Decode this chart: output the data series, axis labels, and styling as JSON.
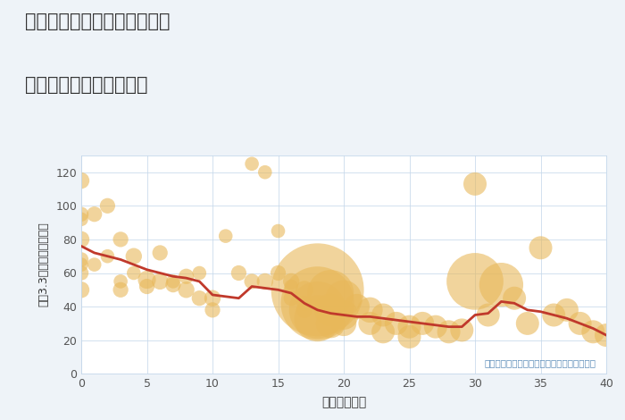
{
  "title_line1": "兵庫県姫路市御国野町御着の",
  "title_line2": "築年数別中古戸建て価格",
  "xlabel": "築年数（年）",
  "ylabel": "坪（3.3㎡）単価（万円）",
  "annotation": "円の大きさは、取引のあった物件面積を示す",
  "background_color": "#eef3f8",
  "plot_background": "#ffffff",
  "xlim": [
    0,
    40
  ],
  "ylim": [
    0,
    130
  ],
  "xticks": [
    0,
    5,
    10,
    15,
    20,
    25,
    30,
    35,
    40
  ],
  "yticks": [
    0,
    20,
    40,
    60,
    80,
    100,
    120
  ],
  "bubble_color": "#E8B85A",
  "bubble_alpha": 0.6,
  "line_color": "#C0392B",
  "line_width": 2.0,
  "scatter_x": [
    0,
    0,
    0,
    0,
    0,
    0,
    0,
    0,
    1,
    1,
    2,
    2,
    3,
    3,
    3,
    4,
    4,
    5,
    5,
    6,
    6,
    7,
    7,
    8,
    8,
    9,
    9,
    10,
    10,
    11,
    12,
    13,
    13,
    14,
    14,
    15,
    15,
    16,
    16,
    16,
    17,
    17,
    17,
    18,
    18,
    18,
    18,
    19,
    19,
    19,
    20,
    20,
    20,
    21,
    22,
    22,
    23,
    23,
    24,
    25,
    25,
    26,
    27,
    28,
    29,
    30,
    30,
    31,
    32,
    33,
    34,
    35,
    36,
    37,
    38,
    39,
    40
  ],
  "scatter_y": [
    115,
    95,
    92,
    80,
    68,
    65,
    60,
    50,
    95,
    65,
    100,
    70,
    80,
    55,
    50,
    70,
    60,
    56,
    52,
    72,
    55,
    55,
    53,
    58,
    50,
    60,
    45,
    45,
    38,
    82,
    60,
    125,
    55,
    120,
    55,
    85,
    60,
    55,
    52,
    45,
    50,
    42,
    38,
    50,
    42,
    38,
    33,
    48,
    38,
    30,
    45,
    35,
    30,
    40,
    38,
    30,
    35,
    25,
    30,
    28,
    22,
    30,
    28,
    25,
    26,
    113,
    55,
    35,
    53,
    45,
    30,
    75,
    35,
    38,
    30,
    25,
    23
  ],
  "scatter_size": [
    25,
    20,
    18,
    25,
    20,
    18,
    20,
    25,
    22,
    18,
    22,
    18,
    22,
    18,
    22,
    25,
    18,
    30,
    22,
    22,
    25,
    18,
    22,
    22,
    25,
    18,
    22,
    25,
    22,
    18,
    22,
    18,
    22,
    18,
    25,
    18,
    22,
    25,
    18,
    22,
    30,
    22,
    25,
    800,
    500,
    300,
    200,
    200,
    100,
    80,
    120,
    80,
    60,
    60,
    60,
    50,
    50,
    50,
    50,
    50,
    50,
    50,
    50,
    50,
    50,
    50,
    300,
    50,
    180,
    50,
    50,
    50,
    50,
    50,
    50,
    50,
    50
  ],
  "line_x": [
    0,
    1,
    2,
    3,
    4,
    5,
    6,
    7,
    8,
    9,
    10,
    11,
    12,
    13,
    14,
    15,
    16,
    17,
    18,
    19,
    20,
    21,
    22,
    23,
    24,
    25,
    26,
    27,
    28,
    29,
    30,
    31,
    32,
    33,
    34,
    35,
    36,
    37,
    38,
    39,
    40
  ],
  "line_y": [
    76,
    72,
    70,
    68,
    65,
    62,
    60,
    58,
    57,
    55,
    47,
    46,
    45,
    52,
    51,
    50,
    48,
    42,
    38,
    36,
    35,
    34,
    34,
    33,
    32,
    31,
    30,
    29,
    28,
    28,
    35,
    36,
    43,
    42,
    38,
    37,
    35,
    33,
    30,
    27,
    23
  ]
}
